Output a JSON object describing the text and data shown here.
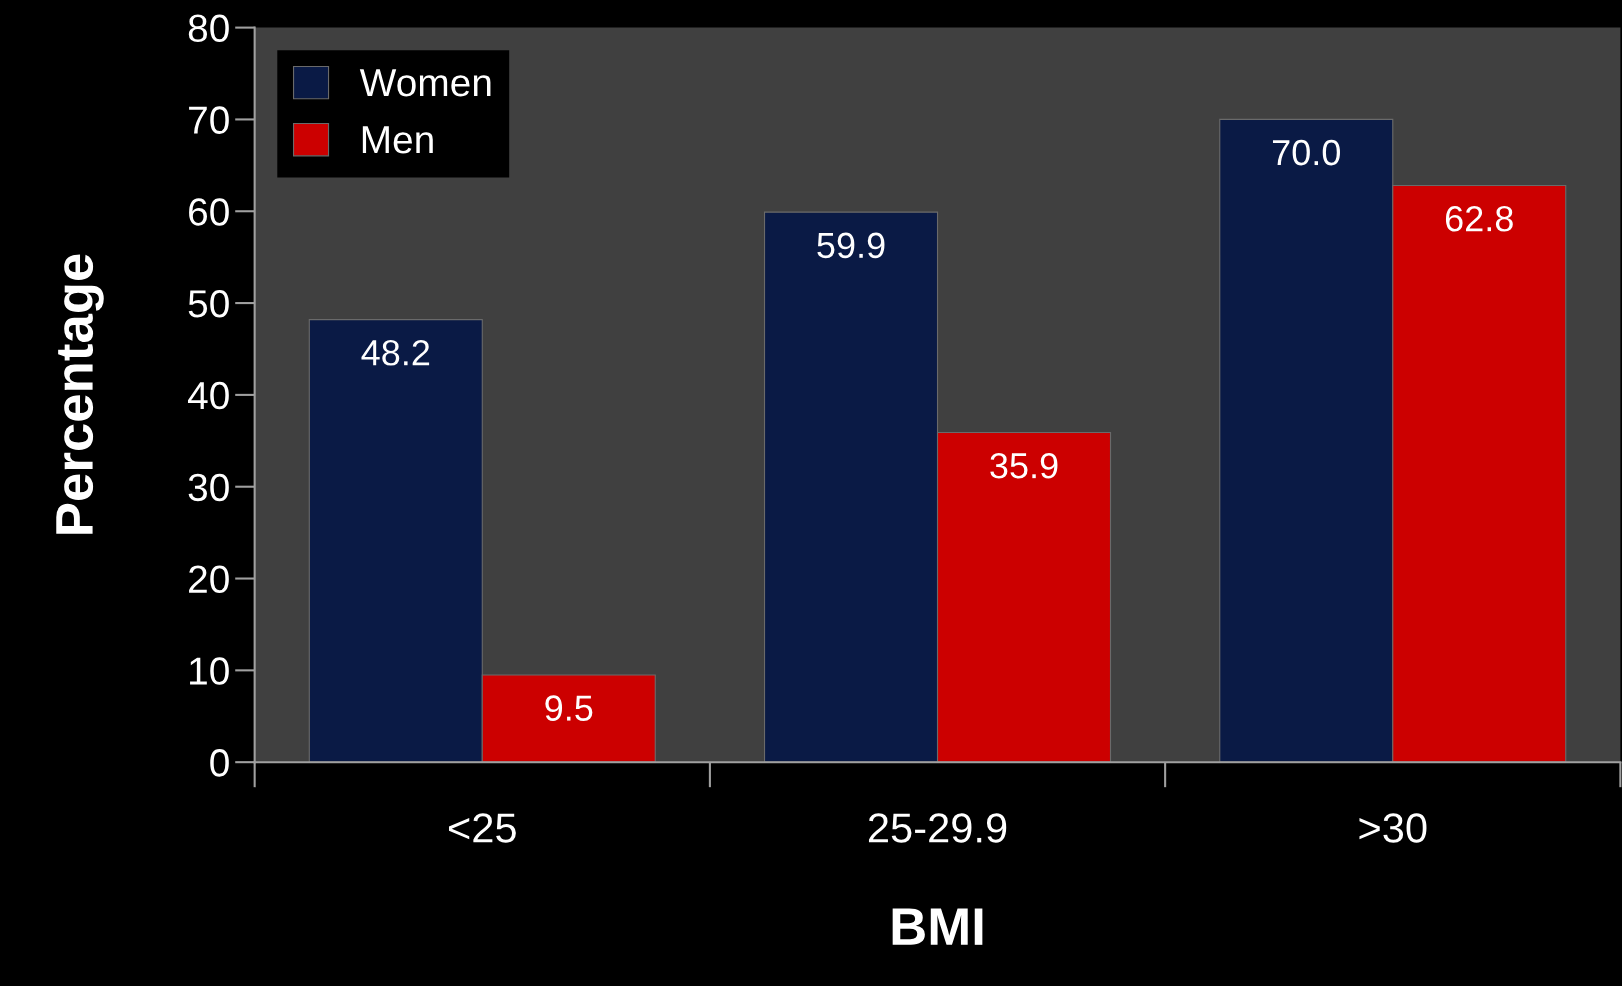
{
  "chart_data": {
    "type": "bar",
    "xlabel": "BMI",
    "ylabel": "Percentage",
    "categories": [
      "<25",
      "25-29.9",
      ">30"
    ],
    "series": [
      {
        "name": "Women",
        "color": "#0a1a45",
        "values": [
          48.2,
          59.9,
          70.0
        ],
        "value_labels": [
          "48.2",
          "59.9",
          "70.0"
        ]
      },
      {
        "name": "Men",
        "color": "#cc0000",
        "values": [
          9.5,
          35.9,
          62.8
        ],
        "value_labels": [
          "9.5",
          "35.9",
          "62.8"
        ]
      }
    ],
    "ylim": [
      0,
      80
    ],
    "yticks": [
      0,
      10,
      20,
      30,
      40,
      50,
      60,
      70,
      80
    ],
    "grid": false,
    "legend": "top left"
  }
}
